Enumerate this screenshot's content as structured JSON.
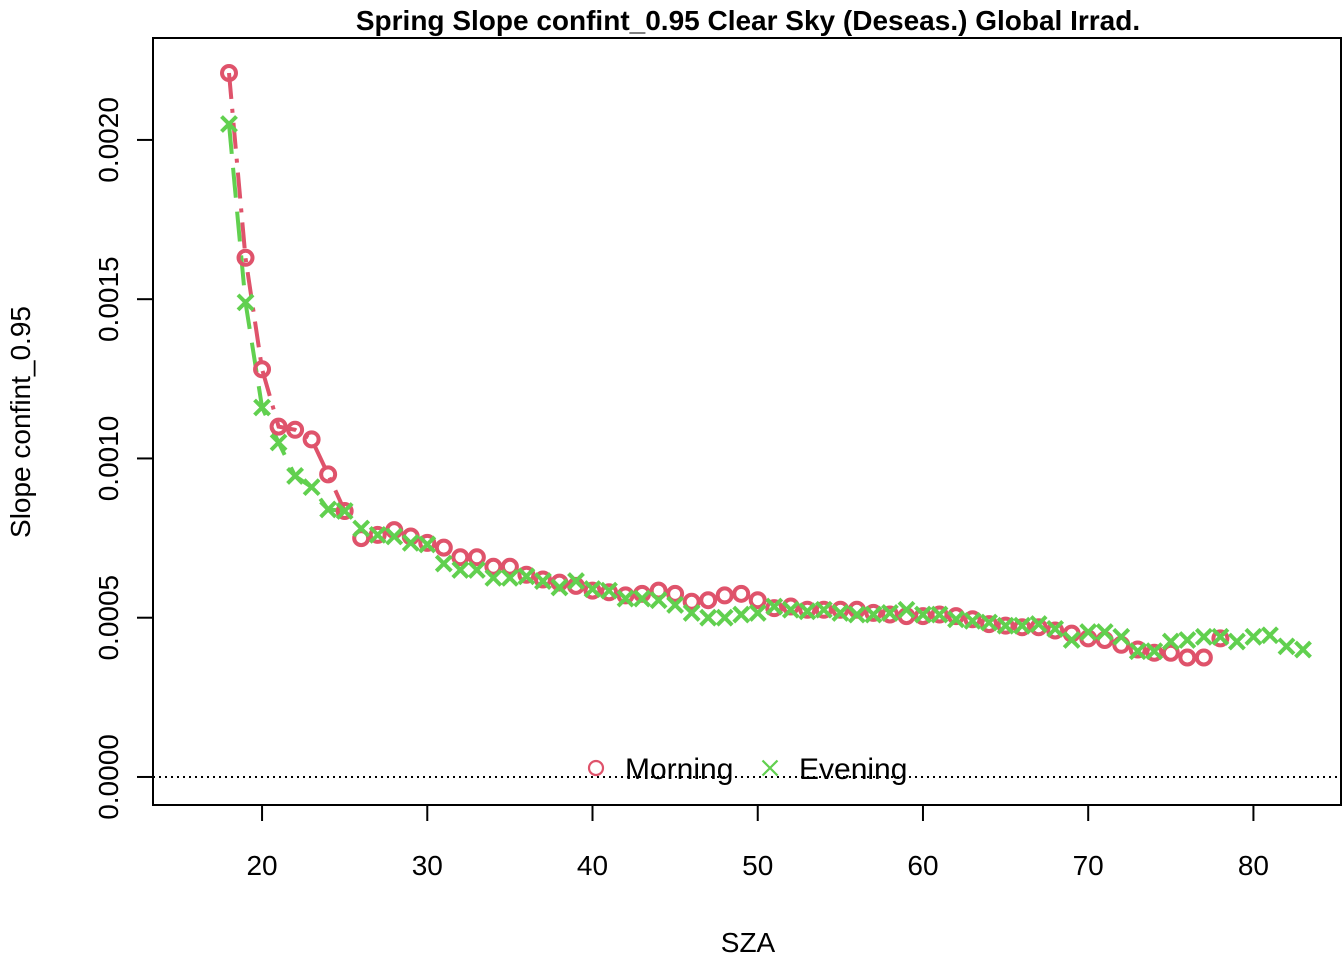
{
  "chart_data": {
    "type": "scatter",
    "title": "Spring Slope confint_0.95 Clear Sky (Deseas.) Global Irrad.",
    "xlabel": "SZA",
    "ylabel": "Slope confint_0.95",
    "xlim": [
      13.4,
      85.3
    ],
    "ylim": [
      -8.8e-05,
      0.00232
    ],
    "x_ticks": [
      20,
      30,
      40,
      50,
      60,
      70,
      80
    ],
    "x_tick_labels": [
      "20",
      "30",
      "40",
      "50",
      "60",
      "70",
      "80"
    ],
    "y_ticks": [
      0,
      0.0005,
      0.001,
      0.0015,
      0.002
    ],
    "y_tick_labels": [
      "0.0000",
      "0.0005",
      "0.0010",
      "0.0015",
      "0.0020"
    ],
    "reference_line": {
      "y": 0,
      "style": "dotted",
      "color": "#000000"
    },
    "legend_position": "bottom-center",
    "grid": false,
    "series": [
      {
        "name": "Morning",
        "marker": "circle",
        "color": "#DF536B",
        "x": [
          18,
          19,
          20,
          21,
          22,
          23,
          24,
          25,
          26,
          27,
          28,
          29,
          30,
          31,
          32,
          33,
          34,
          35,
          36,
          37,
          38,
          39,
          40,
          41,
          42,
          43,
          44,
          45,
          46,
          47,
          48,
          49,
          50,
          51,
          52,
          53,
          54,
          55,
          56,
          57,
          58,
          59,
          60,
          61,
          62,
          63,
          64,
          65,
          66,
          67,
          68,
          69,
          70,
          71,
          72,
          73,
          74,
          75,
          76,
          77,
          78
        ],
        "y": [
          0.00221,
          0.00163,
          0.00128,
          0.0011,
          0.00109,
          0.00106,
          0.00095,
          0.000835,
          0.00075,
          0.00076,
          0.000775,
          0.000755,
          0.000735,
          0.00072,
          0.00069,
          0.00069,
          0.00066,
          0.00066,
          0.000635,
          0.00062,
          0.00061,
          0.0006,
          0.000585,
          0.00058,
          0.00057,
          0.000575,
          0.000585,
          0.000575,
          0.00055,
          0.000555,
          0.00057,
          0.000575,
          0.000555,
          0.00053,
          0.000535,
          0.000525,
          0.000525,
          0.000525,
          0.000525,
          0.000515,
          0.00051,
          0.000505,
          0.000505,
          0.00051,
          0.000505,
          0.000495,
          0.00048,
          0.000475,
          0.00047,
          0.00047,
          0.00046,
          0.00045,
          0.000435,
          0.00043,
          0.000415,
          0.0004,
          0.00039,
          0.00039,
          0.000375,
          0.000375,
          0.000435
        ]
      },
      {
        "name": "Evening",
        "marker": "x",
        "color": "#61D04F",
        "x": [
          18,
          19,
          20,
          21,
          22,
          23,
          24,
          25,
          26,
          27,
          28,
          29,
          30,
          31,
          32,
          33,
          34,
          35,
          36,
          37,
          38,
          39,
          40,
          41,
          42,
          43,
          44,
          45,
          46,
          47,
          48,
          49,
          50,
          51,
          52,
          53,
          54,
          55,
          56,
          57,
          58,
          59,
          60,
          61,
          62,
          63,
          64,
          65,
          66,
          67,
          68,
          69,
          70,
          71,
          72,
          73,
          74,
          75,
          76,
          77,
          78,
          79,
          80,
          81,
          82,
          83
        ],
        "y": [
          0.00205,
          0.00149,
          0.00116,
          0.00105,
          0.000945,
          0.00091,
          0.00084,
          0.000835,
          0.00078,
          0.00076,
          0.000755,
          0.000735,
          0.00073,
          0.00067,
          0.00065,
          0.00065,
          0.000625,
          0.000625,
          0.00063,
          0.000615,
          0.000595,
          0.000615,
          0.00059,
          0.000585,
          0.00056,
          0.00056,
          0.000555,
          0.00054,
          0.000515,
          0.0005,
          0.0005,
          0.00051,
          0.000515,
          0.000535,
          0.000525,
          0.00052,
          0.000525,
          0.000515,
          0.00051,
          0.00051,
          0.000515,
          0.000525,
          0.00051,
          0.00051,
          0.000495,
          0.00049,
          0.000485,
          0.000475,
          0.000475,
          0.00048,
          0.000465,
          0.00043,
          0.000455,
          0.000455,
          0.00044,
          0.000395,
          0.000395,
          0.000425,
          0.00043,
          0.00044,
          0.00044,
          0.000425,
          0.00044,
          0.000445,
          0.00041,
          0.0004
        ]
      }
    ]
  }
}
